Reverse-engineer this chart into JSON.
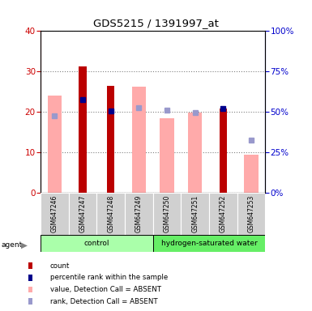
{
  "title": "GDS5215 / 1391997_at",
  "samples": [
    "GSM647246",
    "GSM647247",
    "GSM647248",
    "GSM647249",
    "GSM647250",
    "GSM647251",
    "GSM647252",
    "GSM647253"
  ],
  "red_bars": [
    null,
    31.2,
    26.5,
    null,
    null,
    null,
    20.8,
    null
  ],
  "blue_squares_left": [
    null,
    23.0,
    20.2,
    null,
    null,
    null,
    20.9,
    null
  ],
  "pink_bars": [
    24.0,
    null,
    null,
    26.3,
    18.5,
    19.9,
    null,
    9.5
  ],
  "light_blue_squares_left": [
    19.0,
    null,
    null,
    21.0,
    20.5,
    19.8,
    null,
    13.0
  ],
  "ylim": [
    0,
    40
  ],
  "y2lim": [
    0,
    100
  ],
  "yticks_left": [
    0,
    10,
    20,
    30,
    40
  ],
  "y2ticks": [
    0,
    25,
    50,
    75,
    100
  ],
  "color_red": "#bb0000",
  "color_blue": "#00008b",
  "color_pink": "#ffaaaa",
  "color_light_blue": "#9999cc",
  "group_defs": [
    {
      "label": "control",
      "start": 0,
      "end": 3,
      "color": "#aaffaa"
    },
    {
      "label": "hydrogen-saturated water",
      "start": 4,
      "end": 7,
      "color": "#66ee66"
    }
  ],
  "legend_items": [
    {
      "label": "count",
      "color": "#bb0000"
    },
    {
      "label": "percentile rank within the sample",
      "color": "#00008b"
    },
    {
      "label": "value, Detection Call = ABSENT",
      "color": "#ffaaaa"
    },
    {
      "label": "rank, Detection Call = ABSENT",
      "color": "#9999cc"
    }
  ],
  "bar_width": 0.5,
  "fig_width": 3.85,
  "fig_height": 3.84,
  "dpi": 100
}
